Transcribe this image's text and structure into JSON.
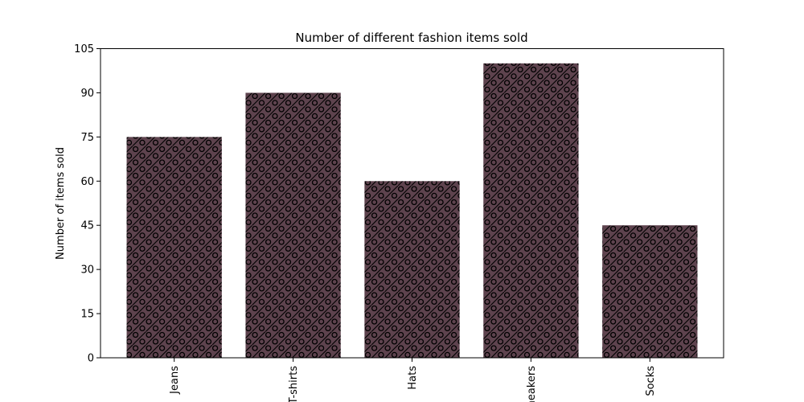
{
  "chart_data": {
    "type": "bar",
    "title": "Number of different fashion items sold",
    "xlabel": "",
    "ylabel": "Number of items sold",
    "categories": [
      "Jeans",
      "T-shirts",
      "Hats",
      "Sneakers",
      "Socks"
    ],
    "values": [
      75,
      90,
      60,
      100,
      45
    ],
    "ylim": [
      0,
      105
    ],
    "yticks": [
      0,
      15,
      30,
      45,
      60,
      75,
      90,
      105
    ],
    "grid": false,
    "bar_color": "#5e434e",
    "hatch_color": "#000000",
    "hatch": "diagonal-lines-and-circles"
  }
}
